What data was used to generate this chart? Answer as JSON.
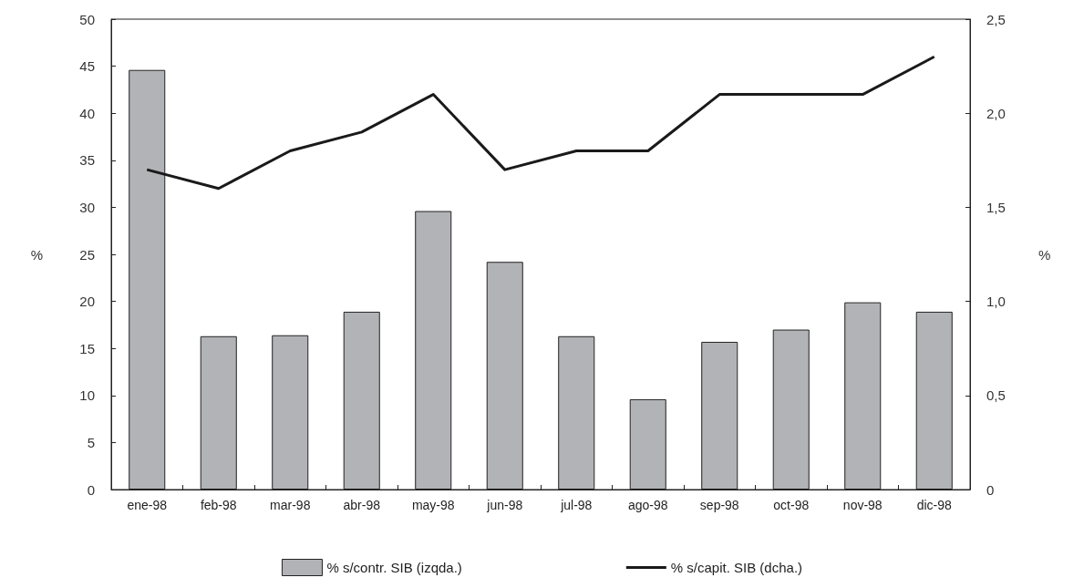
{
  "chart_data": {
    "type": "bar",
    "categories": [
      "ene-98",
      "feb-98",
      "mar-98",
      "abr-98",
      "may-98",
      "jun-98",
      "jul-98",
      "ago-98",
      "sep-98",
      "oct-98",
      "nov-98",
      "dic-98"
    ],
    "series": [
      {
        "name": "% s/contr. SIB (izqda.)",
        "color": "#b2b3b7",
        "values": [
          44.6,
          16.3,
          16.4,
          18.9,
          29.6,
          24.2,
          16.3,
          9.6,
          15.7,
          17.0,
          19.9,
          18.9
        ]
      },
      {
        "name": "% s/capit. SIB (dcha.)",
        "type": "line",
        "axis": "y2",
        "color": "#1a1a1a",
        "values": [
          1.7,
          1.6,
          1.8,
          1.9,
          2.1,
          1.7,
          1.8,
          1.8,
          2.1,
          2.1,
          2.1,
          2.3
        ]
      }
    ],
    "ylabel": "%",
    "y2label": "%",
    "ylim": [
      0,
      50
    ],
    "yticks": [
      0,
      5,
      10,
      15,
      20,
      25,
      30,
      35,
      40,
      45,
      50
    ],
    "y2lim": [
      0,
      2.5
    ],
    "y2ticks": [
      0,
      {
        "value": 0.5,
        "label": "0,5"
      },
      {
        "value": 1,
        "label": "1,0"
      },
      {
        "value": 1.5,
        "label": "1,5"
      },
      {
        "value": 2,
        "label": "2,0"
      },
      {
        "value": 2.5,
        "label": "2,5"
      }
    ],
    "grid": false,
    "legend": "bottom",
    "marker": "none",
    "line_style": "solid"
  }
}
